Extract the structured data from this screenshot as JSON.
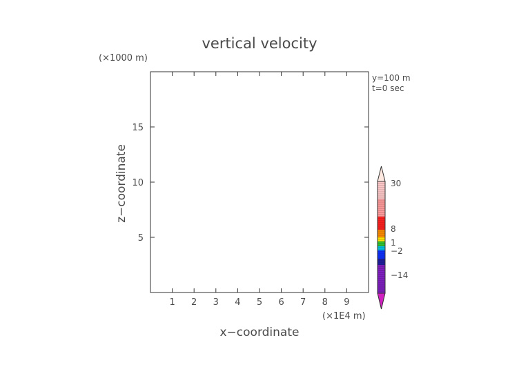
{
  "chart_data": {
    "type": "heatmap",
    "title": "vertical velocity",
    "xlabel": "x−coordinate",
    "ylabel": "z−coordinate",
    "x_unit": "(×1E4 m)",
    "y_unit": "(×1000 m)",
    "xlim": [
      0,
      10
    ],
    "ylim": [
      0,
      20
    ],
    "x_ticks": [
      1,
      2,
      3,
      4,
      5,
      6,
      7,
      8,
      9
    ],
    "y_ticks": [
      5,
      10,
      15
    ],
    "info_lines": [
      "y=100 m",
      "t=0 sec"
    ],
    "colorbar": {
      "labels": [
        {
          "text": "30",
          "value": 30
        },
        {
          "text": "8",
          "value": 8
        },
        {
          "text": "1",
          "value": 1
        },
        {
          "text": "−2",
          "value": -2
        },
        {
          "text": "−14",
          "value": -14
        }
      ],
      "colors": {
        "top_arrow": "#ffe8e0",
        "pink_light": "#ffc8c8",
        "pink": "#ff9a9a",
        "red": "#ff2020",
        "orange": "#ff8c00",
        "yellow": "#ffe000",
        "green": "#30c030",
        "cyan": "#00c0e0",
        "blue": "#1030ff",
        "navy": "#2020a0",
        "purple": "#8020c0",
        "bottom_arrow": "#d020c0"
      }
    },
    "grid": false,
    "field": "empty"
  }
}
